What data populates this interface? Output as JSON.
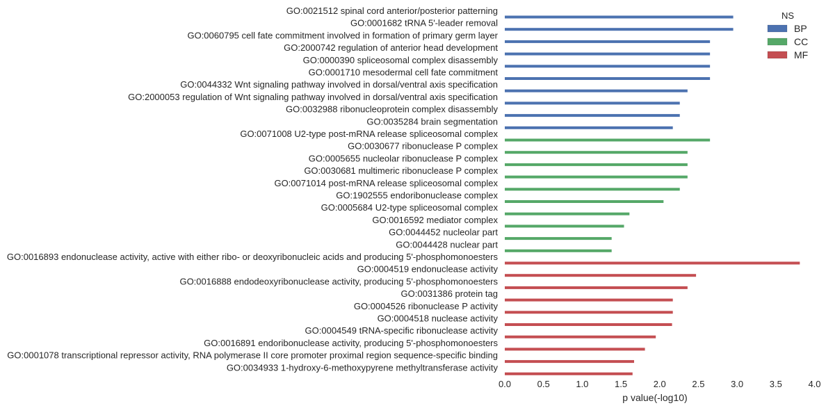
{
  "chart_data": {
    "type": "bar",
    "orientation": "horizontal",
    "xlabel": "p value(-log10)",
    "ylabel": "",
    "xlim": [
      0,
      4.0
    ],
    "xticks": [
      "0.0",
      "0.5",
      "1.0",
      "1.5",
      "2.0",
      "2.5",
      "3.0",
      "3.5",
      "4.0"
    ],
    "grid": false,
    "legend": {
      "title": "NS",
      "placement": "top-right",
      "entries": [
        {
          "name": "BP",
          "color": "#4c72b0"
        },
        {
          "name": "CC",
          "color": "#55a868"
        },
        {
          "name": "MF",
          "color": "#c44e52"
        }
      ]
    },
    "series": [
      {
        "name": "BP",
        "color": "#4c72b0",
        "categories": [
          "GO:0021512 spinal cord anterior/posterior patterning",
          "GO:0001682 tRNA 5'-leader removal",
          "GO:0060795 cell fate commitment involved in formation of primary germ layer",
          "GO:2000742 regulation of anterior head development",
          "GO:0000390 spliceosomal complex disassembly",
          "GO:0001710 mesodermal cell fate commitment",
          "GO:0044332 Wnt signaling pathway involved in dorsal/ventral axis specification",
          "GO:2000053 regulation of Wnt signaling pathway involved in dorsal/ventral axis specification",
          "GO:0032988 ribonucleoprotein complex disassembly",
          "GO:0035284 brain segmentation"
        ],
        "values": [
          2.95,
          2.95,
          2.65,
          2.65,
          2.65,
          2.65,
          2.36,
          2.26,
          2.26,
          2.17
        ]
      },
      {
        "name": "CC",
        "color": "#55a868",
        "categories": [
          "GO:0071008 U2-type post-mRNA release spliceosomal complex",
          "GO:0030677 ribonuclease P complex",
          "GO:0005655 nucleolar ribonuclease P complex",
          "GO:0030681 multimeric ribonuclease P complex",
          "GO:0071014 post-mRNA release spliceosomal complex",
          "GO:1902555 endoribonuclease complex",
          "GO:0005684 U2-type spliceosomal complex",
          "GO:0016592 mediator complex",
          "GO:0044452 nucleolar part",
          "GO:0044428 nuclear part"
        ],
        "values": [
          2.65,
          2.36,
          2.36,
          2.36,
          2.26,
          2.05,
          1.61,
          1.54,
          1.38,
          1.38
        ]
      },
      {
        "name": "MF",
        "color": "#c44e52",
        "categories": [
          "GO:0016893 endonuclease activity, active with either ribo- or deoxyribonucleic acids and producing 5'-phosphomonoesters",
          "GO:0004519 endonuclease activity",
          "GO:0016888 endodeoxyribonuclease activity, producing 5'-phosphomonoesters",
          "GO:0031386 protein tag",
          "GO:0004526 ribonuclease P activity",
          "GO:0004518 nuclease activity",
          "GO:0004549 tRNA-specific ribonuclease activity",
          "GO:0016891 endoribonuclease activity, producing 5'-phosphomonoesters",
          "GO:0001078 transcriptional repressor activity, RNA polymerase II core promoter proximal region sequence-specific binding",
          "GO:0034933 1-hydroxy-6-methoxypyrene methyltransferase activity"
        ],
        "values": [
          3.81,
          2.47,
          2.36,
          2.17,
          2.17,
          2.16,
          1.95,
          1.81,
          1.67,
          1.65
        ]
      }
    ]
  }
}
